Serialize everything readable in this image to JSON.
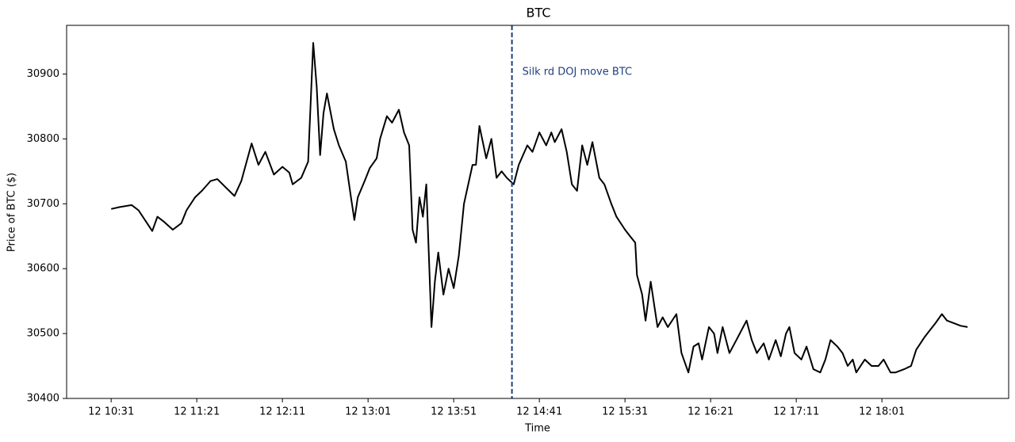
{
  "chart_data": {
    "type": "line",
    "title": "BTC",
    "xlabel": "Time",
    "ylabel": "Price of BTC ($)",
    "x": [
      "12 10:31",
      "12 10:36",
      "12 10:43",
      "12 10:47",
      "12 10:52",
      "12 10:55",
      "12 10:58",
      "12 11:02",
      "12 11:07",
      "12 11:12",
      "12 11:15",
      "12 11:20",
      "12 11:24",
      "12 11:29",
      "12 11:33",
      "12 11:38",
      "12 11:43",
      "12 11:47",
      "12 11:53",
      "12 11:57",
      "12 12:01",
      "12 12:06",
      "12 12:11",
      "12 12:15",
      "12 12:17",
      "12 12:22",
      "12 12:26",
      "12 12:29",
      "12 12:31",
      "12 12:33",
      "12 12:35",
      "12 12:37",
      "12 12:41",
      "12 12:44",
      "12 12:48",
      "12 12:51",
      "12 12:53",
      "12 12:55",
      "12 12:59",
      "12 13:02",
      "12 13:06",
      "12 13:08",
      "12 13:12",
      "12 13:15",
      "12 13:19",
      "12 13:22",
      "12 13:25",
      "12 13:27",
      "12 13:29",
      "12 13:31",
      "12 13:33",
      "12 13:35",
      "12 13:38",
      "12 13:40",
      "12 13:42",
      "12 13:45",
      "12 13:48",
      "12 13:51",
      "12 13:54",
      "12 13:57",
      "12 14:02",
      "12 14:04",
      "12 14:06",
      "12 14:10",
      "12 14:13",
      "12 14:16",
      "12 14:19",
      "12 14:22",
      "12 14:26",
      "12 14:29",
      "12 14:34",
      "12 14:37",
      "12 14:41",
      "12 14:45",
      "12 14:48",
      "12 14:50",
      "12 14:54",
      "12 14:57",
      "12 15:00",
      "12 15:03",
      "12 15:06",
      "12 15:09",
      "12 15:12",
      "12 15:16",
      "12 15:19",
      "12 15:23",
      "12 15:26",
      "12 15:31",
      "12 15:34",
      "12 15:37",
      "12 15:38",
      "12 15:41",
      "12 15:43",
      "12 15:46",
      "12 15:50",
      "12 15:53",
      "12 15:56",
      "12 16:01",
      "12 16:04",
      "12 16:08",
      "12 16:11",
      "12 16:14",
      "12 16:16",
      "12 16:20",
      "12 16:23",
      "12 16:25",
      "12 16:28",
      "12 16:32",
      "12 16:36",
      "12 16:40",
      "12 16:42",
      "12 16:45",
      "12 16:48",
      "12 16:52",
      "12 16:55",
      "12 16:59",
      "12 17:02",
      "12 17:05",
      "12 17:07",
      "12 17:10",
      "12 17:14",
      "12 17:17",
      "12 17:21",
      "12 17:25",
      "12 17:28",
      "12 17:31",
      "12 17:35",
      "12 17:38",
      "12 17:41",
      "12 17:44",
      "12 17:46",
      "12 17:51",
      "12 17:55",
      "12 17:59",
      "12 18:02",
      "12 18:06",
      "12 18:09",
      "12 18:14",
      "12 18:18",
      "12 18:21",
      "12 18:26",
      "12 18:29",
      "12 18:32",
      "12 18:36",
      "12 18:39",
      "12 18:44",
      "12 18:47",
      "12 18:51"
    ],
    "values": [
      30692,
      30695,
      30698,
      30690,
      30670,
      30658,
      30680,
      30672,
      30660,
      30670,
      30690,
      30710,
      30720,
      30735,
      30738,
      30725,
      30712,
      30735,
      30793,
      30760,
      30780,
      30745,
      30757,
      30748,
      30730,
      30740,
      30765,
      30948,
      30880,
      30775,
      30840,
      30870,
      30815,
      30790,
      30765,
      30710,
      30675,
      30710,
      30735,
      30755,
      30770,
      30800,
      30835,
      30825,
      30845,
      30810,
      30790,
      30660,
      30640,
      30710,
      30680,
      30730,
      30510,
      30580,
      30625,
      30560,
      30600,
      30570,
      30620,
      30700,
      30760,
      30760,
      30820,
      30770,
      30800,
      30740,
      30750,
      30740,
      30730,
      30760,
      30790,
      30780,
      30810,
      30790,
      30810,
      30795,
      30815,
      30780,
      30730,
      30720,
      30790,
      30760,
      30795,
      30740,
      30730,
      30700,
      30680,
      30660,
      30650,
      30640,
      30590,
      30560,
      30520,
      30580,
      30510,
      30525,
      30510,
      30530,
      30470,
      30440,
      30480,
      30485,
      30460,
      30510,
      30500,
      30470,
      30510,
      30470,
      30490,
      30510,
      30520,
      30490,
      30470,
      30485,
      30460,
      30490,
      30465,
      30500,
      30510,
      30470,
      30460,
      30480,
      30445,
      30440,
      30460,
      30490,
      30480,
      30470,
      30450,
      30460,
      30440,
      30460,
      30450,
      30450,
      30460,
      30440,
      30440,
      30445,
      30450,
      30475,
      30495,
      30505,
      30515,
      30530,
      30520,
      30515,
      30512,
      30510
    ],
    "color": "#000000",
    "xlim": [
      "12 10:05",
      "12 19:15"
    ],
    "xticks": [
      "12 10:31",
      "12 11:21",
      "12 12:11",
      "12 13:01",
      "12 13:51",
      "12 14:41",
      "12 15:31",
      "12 16:21",
      "12 17:11",
      "12 18:01"
    ],
    "ylim": [
      30400,
      30975
    ],
    "yticks": [
      30400,
      30500,
      30600,
      30700,
      30800,
      30900
    ],
    "annotations": [
      {
        "x": "12 14:25",
        "text": "Silk rd DOJ move BTC",
        "color": "#1f3f7f"
      }
    ]
  }
}
